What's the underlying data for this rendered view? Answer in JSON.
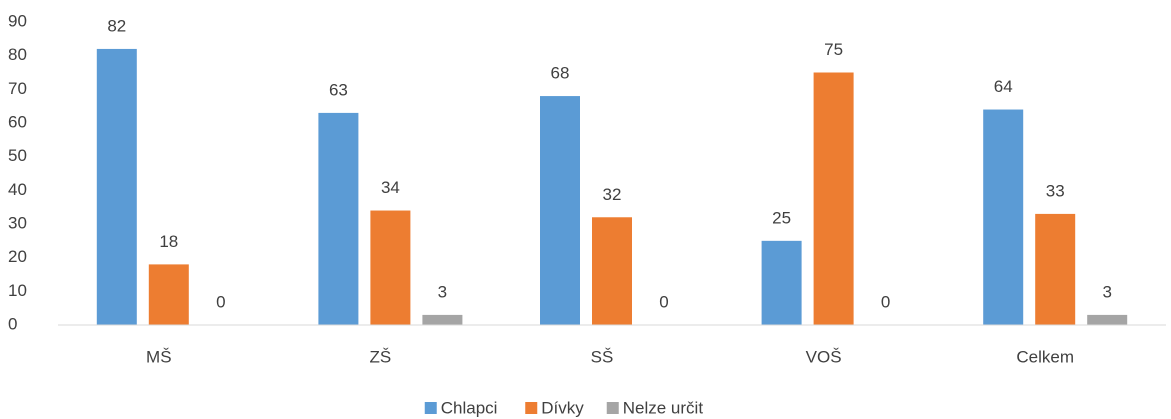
{
  "chart_data": {
    "type": "bar",
    "categories": [
      "MŠ",
      "ZŠ",
      "SŠ",
      "VOŠ",
      "Celkem"
    ],
    "series": [
      {
        "name": "Chlapci",
        "color": "#5b9bd5",
        "values": [
          82,
          63,
          68,
          25,
          64
        ]
      },
      {
        "name": "Dívky",
        "color": "#ed7d31",
        "values": [
          18,
          34,
          32,
          75,
          33
        ]
      },
      {
        "name": "Nelze určit",
        "color": "#a5a5a5",
        "values": [
          0,
          3,
          0,
          0,
          3
        ]
      }
    ],
    "ylim": [
      0,
      90
    ],
    "yticks": [
      0,
      10,
      20,
      30,
      40,
      50,
      60,
      70,
      80,
      90
    ],
    "grid": false,
    "legend": "bottom"
  }
}
